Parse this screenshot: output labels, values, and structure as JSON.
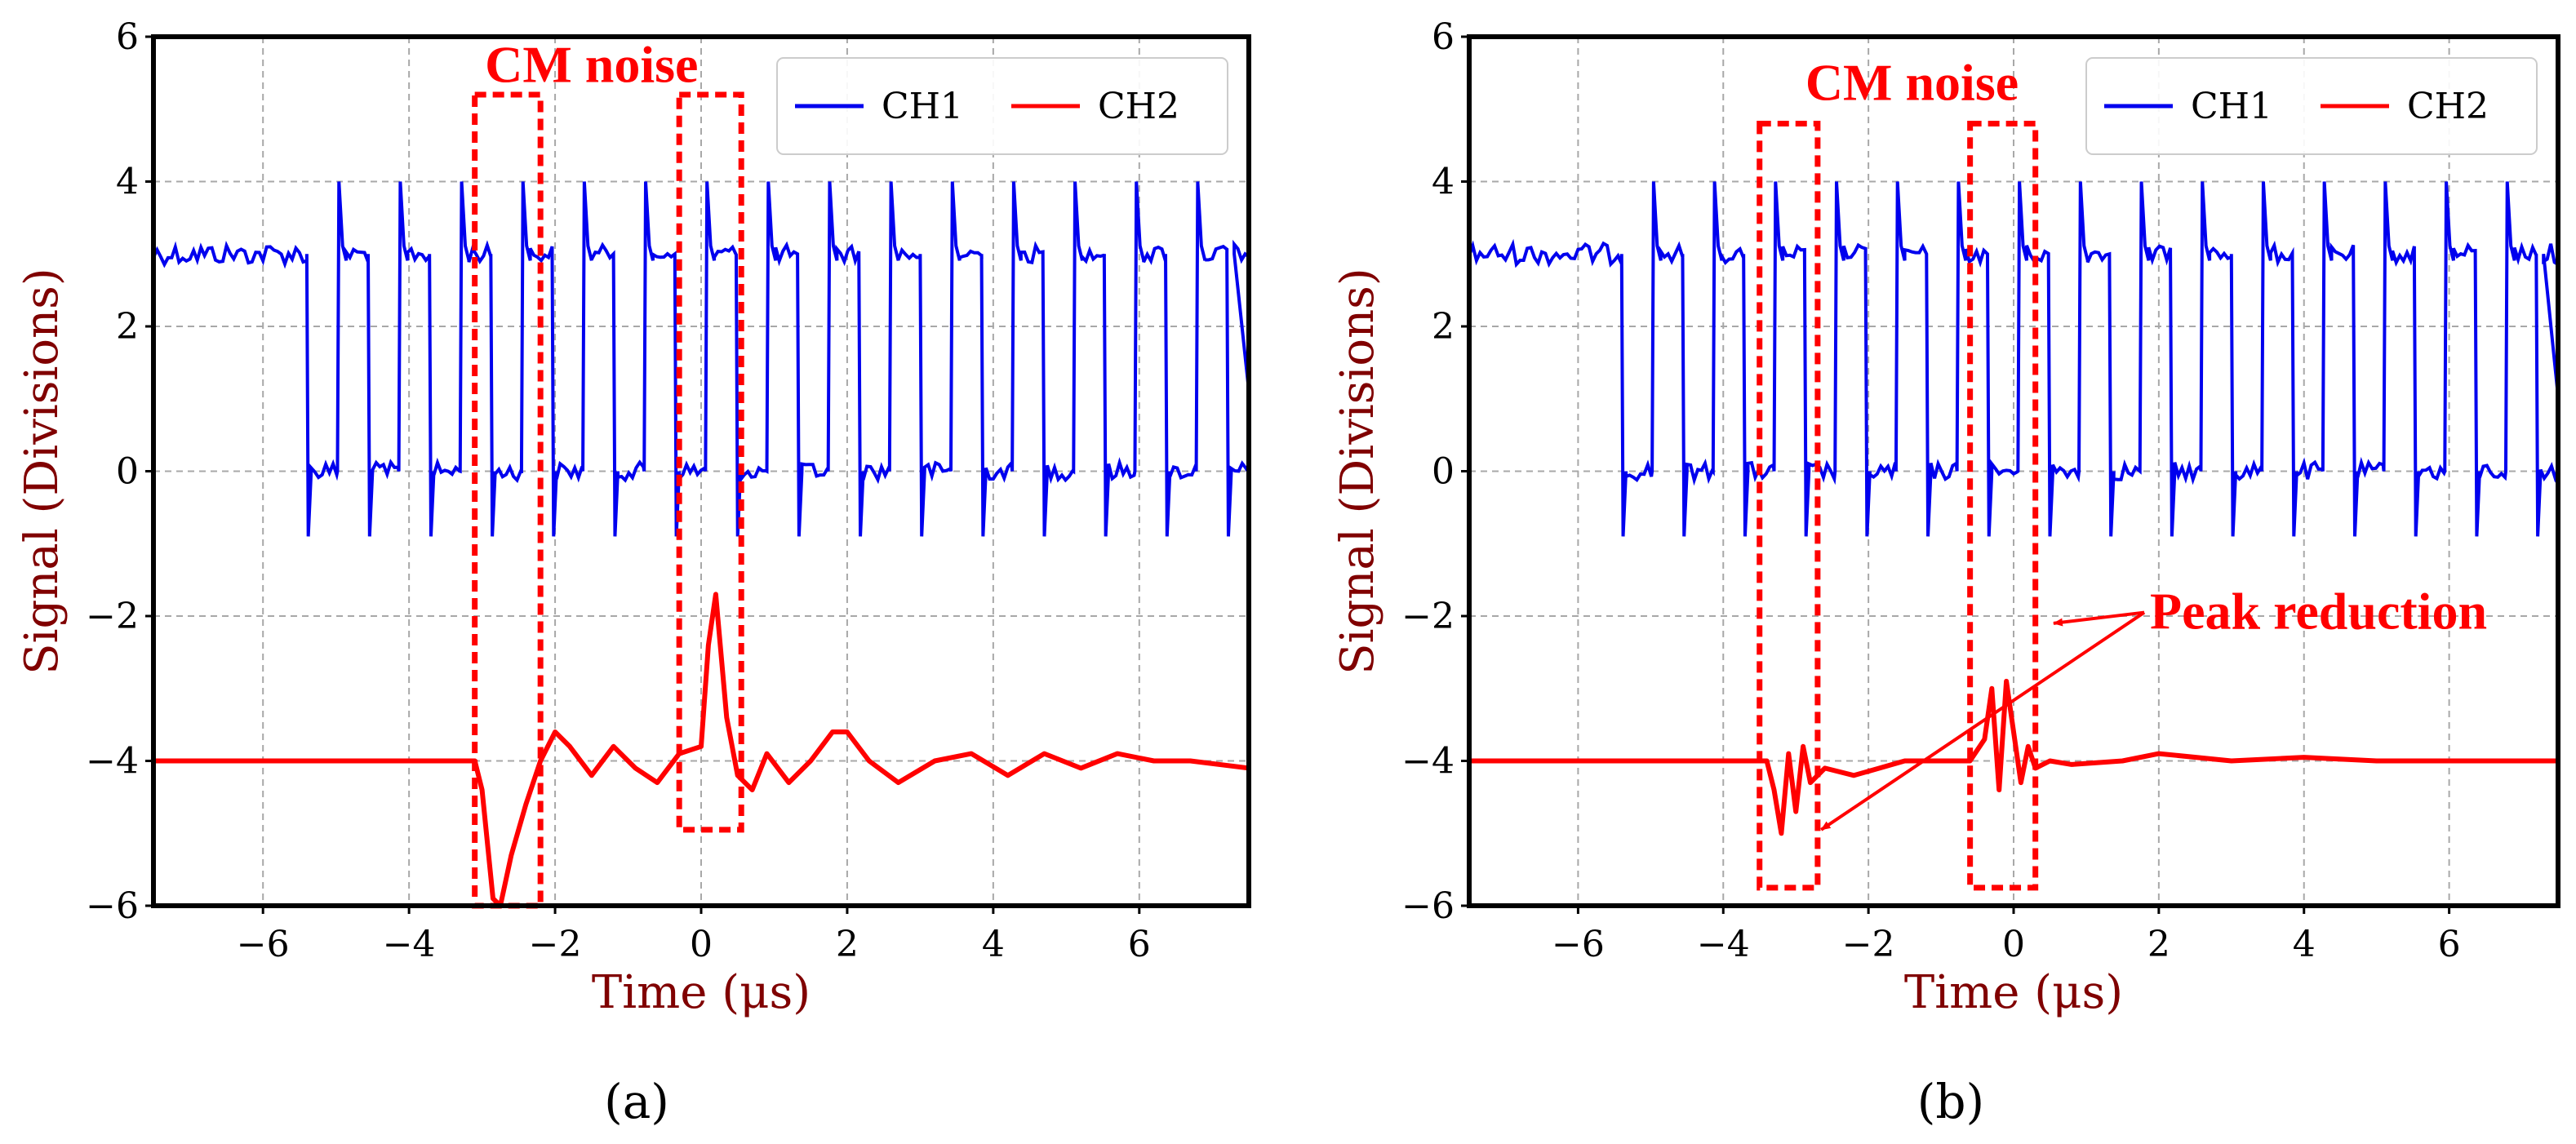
{
  "colors": {
    "ch1": "#0000ee",
    "ch2": "#ff0000",
    "axis_label": "#800000",
    "annotation": "#ff0000"
  },
  "chart_data": [
    {
      "type": "line",
      "panel_label": "(a)",
      "xlabel": "Time (μs)",
      "ylabel": "Signal (Divisions)",
      "xlim": [
        -7.5,
        7.5
      ],
      "ylim": [
        -6,
        6
      ],
      "xticks": [
        -6,
        -4,
        -2,
        0,
        2,
        4,
        6
      ],
      "yticks": [
        -6,
        -4,
        -2,
        0,
        2,
        4,
        6
      ],
      "grid": true,
      "legend": {
        "position": "top-right",
        "entries": [
          "CH1",
          "CH2"
        ]
      },
      "series": [
        {
          "name": "CH1",
          "color": "#0000ee",
          "baseline_high": 3.0,
          "baseline_low": 0.0,
          "pulse_start": -5.4,
          "pulse_end": 7.3,
          "period": 0.84,
          "duty": 0.5,
          "spike_high": 4.0,
          "spike_low": -0.9
        },
        {
          "name": "CH2",
          "color": "#ff0000",
          "baseline": -4.0,
          "x": [
            -7.5,
            -3.1,
            -3.0,
            -2.85,
            -2.75,
            -2.6,
            -2.4,
            -2.2,
            -2.0,
            -1.8,
            -1.5,
            -1.2,
            -0.9,
            -0.6,
            -0.3,
            0.0,
            0.1,
            0.2,
            0.35,
            0.5,
            0.7,
            0.9,
            1.2,
            1.5,
            1.8,
            2.0,
            2.3,
            2.7,
            3.2,
            3.7,
            4.2,
            4.7,
            5.2,
            5.7,
            6.2,
            6.7,
            7.5
          ],
          "y": [
            -4.0,
            -4.0,
            -4.4,
            -5.9,
            -6.0,
            -5.3,
            -4.6,
            -4.0,
            -3.6,
            -3.8,
            -4.2,
            -3.8,
            -4.1,
            -4.3,
            -3.9,
            -3.8,
            -2.4,
            -1.7,
            -3.4,
            -4.2,
            -4.4,
            -3.9,
            -4.3,
            -4.0,
            -3.6,
            -3.6,
            -4.0,
            -4.3,
            -4.0,
            -3.9,
            -4.2,
            -3.9,
            -4.1,
            -3.9,
            -4.0,
            -4.0,
            -4.1
          ]
        }
      ],
      "annotations": [
        {
          "text": "CM noise",
          "x": -1.5,
          "y": 5.6
        },
        {
          "type": "box",
          "x0": -3.1,
          "x1": -2.2,
          "y0": -6.0,
          "y1": 5.2
        },
        {
          "type": "box",
          "x0": -0.3,
          "x1": 0.55,
          "y0": -4.95,
          "y1": 5.2
        }
      ]
    },
    {
      "type": "line",
      "panel_label": "(b)",
      "xlabel": "Time (μs)",
      "ylabel": "Signal (Divisions)",
      "xlim": [
        -7.5,
        7.5
      ],
      "ylim": [
        -6,
        6
      ],
      "xticks": [
        -6,
        -4,
        -2,
        0,
        2,
        4,
        6
      ],
      "yticks": [
        -6,
        -4,
        -2,
        0,
        2,
        4,
        6
      ],
      "grid": true,
      "legend": {
        "position": "top-right",
        "entries": [
          "CH1",
          "CH2"
        ]
      },
      "series": [
        {
          "name": "CH1",
          "color": "#0000ee",
          "baseline_high": 3.0,
          "baseline_low": 0.0,
          "pulse_start": -5.4,
          "pulse_end": 7.3,
          "period": 0.84,
          "duty": 0.5,
          "spike_high": 4.0,
          "spike_low": -0.9
        },
        {
          "name": "CH2",
          "color": "#ff0000",
          "baseline": -4.0,
          "x": [
            -7.5,
            -3.4,
            -3.3,
            -3.2,
            -3.1,
            -3.0,
            -2.9,
            -2.8,
            -2.6,
            -2.2,
            -1.5,
            -0.8,
            -0.6,
            -0.4,
            -0.3,
            -0.2,
            -0.1,
            0.0,
            0.1,
            0.2,
            0.3,
            0.5,
            0.8,
            1.5,
            2.0,
            3.0,
            4.0,
            5.0,
            6.0,
            7.5
          ],
          "y": [
            -4.0,
            -4.0,
            -4.4,
            -5.0,
            -3.9,
            -4.7,
            -3.8,
            -4.3,
            -4.1,
            -4.2,
            -4.0,
            -4.0,
            -4.0,
            -3.7,
            -3.0,
            -4.4,
            -2.9,
            -3.6,
            -4.3,
            -3.8,
            -4.1,
            -4.0,
            -4.05,
            -4.0,
            -3.9,
            -4.0,
            -3.95,
            -4.0,
            -4.0,
            -4.0
          ]
        }
      ],
      "annotations": [
        {
          "text": "CM noise",
          "x": -1.4,
          "y": 5.35
        },
        {
          "text": "Peak reduction",
          "x": 4.2,
          "y": -1.95
        },
        {
          "type": "box",
          "x0": -3.5,
          "x1": -2.7,
          "y0": -5.75,
          "y1": 4.8
        },
        {
          "type": "box",
          "x0": -0.6,
          "x1": 0.3,
          "y0": -5.75,
          "y1": 4.8
        },
        {
          "type": "arrow",
          "from": [
            1.8,
            -1.95
          ],
          "to": [
            0.55,
            -2.1
          ]
        },
        {
          "type": "arrow",
          "from": [
            1.8,
            -1.95
          ],
          "to": [
            -2.65,
            -4.95
          ]
        }
      ]
    }
  ]
}
